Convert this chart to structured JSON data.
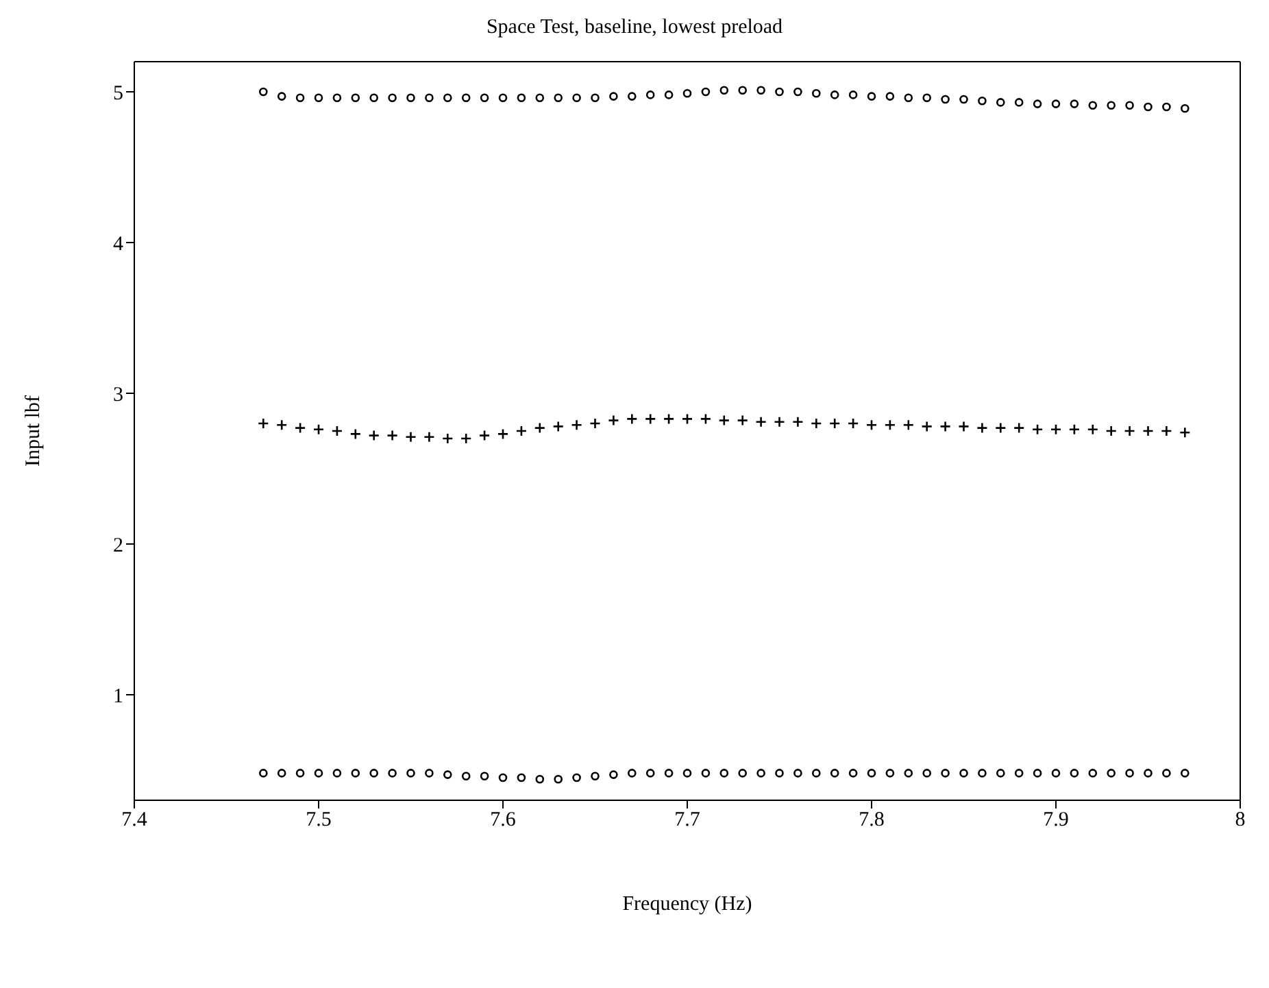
{
  "chart_data": {
    "type": "scatter",
    "title": "Space Test, baseline, lowest preload",
    "xlabel": "Frequency (Hz)",
    "ylabel": "Input lbf",
    "x": [
      7.47,
      7.48,
      7.49,
      7.5,
      7.51,
      7.52,
      7.53,
      7.54,
      7.55,
      7.56,
      7.57,
      7.58,
      7.59,
      7.6,
      7.61,
      7.62,
      7.63,
      7.64,
      7.65,
      7.66,
      7.67,
      7.68,
      7.69,
      7.7,
      7.71,
      7.72,
      7.73,
      7.74,
      7.75,
      7.76,
      7.77,
      7.78,
      7.79,
      7.8,
      7.81,
      7.82,
      7.83,
      7.84,
      7.85,
      7.86,
      7.87,
      7.88,
      7.89,
      7.9,
      7.91,
      7.92,
      7.93,
      7.94,
      7.95,
      7.96,
      7.97
    ],
    "series": [
      {
        "color": "#000000",
        "marker": "circle",
        "values": [
          5.0,
          4.97,
          4.96,
          4.96,
          4.96,
          4.96,
          4.96,
          4.96,
          4.96,
          4.96,
          4.96,
          4.96,
          4.96,
          4.96,
          4.96,
          4.96,
          4.96,
          4.96,
          4.96,
          4.97,
          4.97,
          4.98,
          4.98,
          4.99,
          5.0,
          5.01,
          5.01,
          5.01,
          5.0,
          5.0,
          4.99,
          4.98,
          4.98,
          4.97,
          4.97,
          4.96,
          4.96,
          4.95,
          4.95,
          4.94,
          4.93,
          4.93,
          4.92,
          4.92,
          4.92,
          4.91,
          4.91,
          4.91,
          4.9,
          4.9,
          4.89
        ]
      },
      {
        "color": "#000000",
        "marker": "cross",
        "values": [
          2.8,
          2.79,
          2.77,
          2.76,
          2.75,
          2.73,
          2.72,
          2.72,
          2.71,
          2.71,
          2.7,
          2.7,
          2.72,
          2.73,
          2.75,
          2.77,
          2.78,
          2.79,
          2.8,
          2.82,
          2.83,
          2.83,
          2.83,
          2.83,
          2.83,
          2.82,
          2.82,
          2.81,
          2.81,
          2.81,
          2.8,
          2.8,
          2.8,
          2.79,
          2.79,
          2.79,
          2.78,
          2.78,
          2.78,
          2.77,
          2.77,
          2.77,
          2.76,
          2.76,
          2.76,
          2.76,
          2.75,
          2.75,
          2.75,
          2.75,
          2.74
        ]
      },
      {
        "color": "#000000",
        "marker": "circle",
        "values": [
          0.48,
          0.48,
          0.48,
          0.48,
          0.48,
          0.48,
          0.48,
          0.48,
          0.48,
          0.48,
          0.47,
          0.46,
          0.46,
          0.45,
          0.45,
          0.44,
          0.44,
          0.45,
          0.46,
          0.47,
          0.48,
          0.48,
          0.48,
          0.48,
          0.48,
          0.48,
          0.48,
          0.48,
          0.48,
          0.48,
          0.48,
          0.48,
          0.48,
          0.48,
          0.48,
          0.48,
          0.48,
          0.48,
          0.48,
          0.48,
          0.48,
          0.48,
          0.48,
          0.48,
          0.48,
          0.48,
          0.48,
          0.48,
          0.48,
          0.48,
          0.48
        ]
      }
    ],
    "xlim": [
      7.4,
      8
    ],
    "xticks": [
      7.4,
      7.5,
      7.6,
      7.7,
      7.8,
      7.9,
      8
    ],
    "ylim": [
      0.3,
      5.2
    ],
    "yticks": [
      1,
      2,
      3,
      4,
      5
    ]
  }
}
